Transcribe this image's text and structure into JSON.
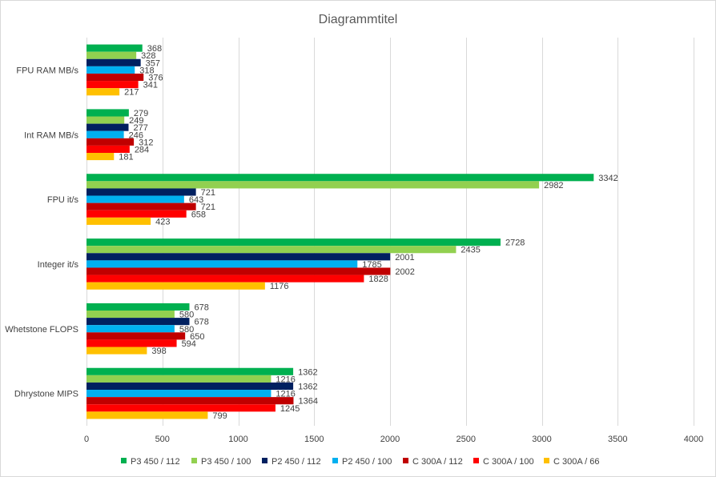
{
  "chart_data": {
    "type": "bar",
    "orientation": "horizontal",
    "title": "Diagrammtitel",
    "xlabel": "",
    "ylabel": "",
    "xlim": [
      0,
      4000
    ],
    "xticks": [
      0,
      500,
      1000,
      1500,
      2000,
      2500,
      3000,
      3500,
      4000
    ],
    "grid": true,
    "legend_position": "bottom",
    "categories": [
      "FPU RAM MB/s",
      "Int RAM MB/s",
      "FPU it/s",
      "Integer it/s",
      "Whetstone FLOPS",
      "Dhrystone MIPS"
    ],
    "series": [
      {
        "name": "P3 450 / 112",
        "color": "#00b050",
        "values": [
          368,
          279,
          3342,
          2728,
          678,
          1362
        ]
      },
      {
        "name": "P3 450 / 100",
        "color": "#92d050",
        "values": [
          328,
          249,
          2982,
          2435,
          580,
          1216
        ]
      },
      {
        "name": "P2 450 / 112",
        "color": "#002060",
        "values": [
          357,
          277,
          721,
          2001,
          678,
          1362
        ]
      },
      {
        "name": "P2 450 / 100",
        "color": "#00b0f0",
        "values": [
          318,
          246,
          643,
          1785,
          580,
          1216
        ]
      },
      {
        "name": "C 300A / 112",
        "color": "#c00000",
        "values": [
          376,
          312,
          721,
          2002,
          650,
          1364
        ]
      },
      {
        "name": "C 300A / 100",
        "color": "#ff0000",
        "values": [
          341,
          284,
          658,
          1828,
          594,
          1245
        ]
      },
      {
        "name": "C 300A / 66",
        "color": "#ffc000",
        "values": [
          217,
          181,
          423,
          1176,
          398,
          799
        ]
      }
    ]
  }
}
